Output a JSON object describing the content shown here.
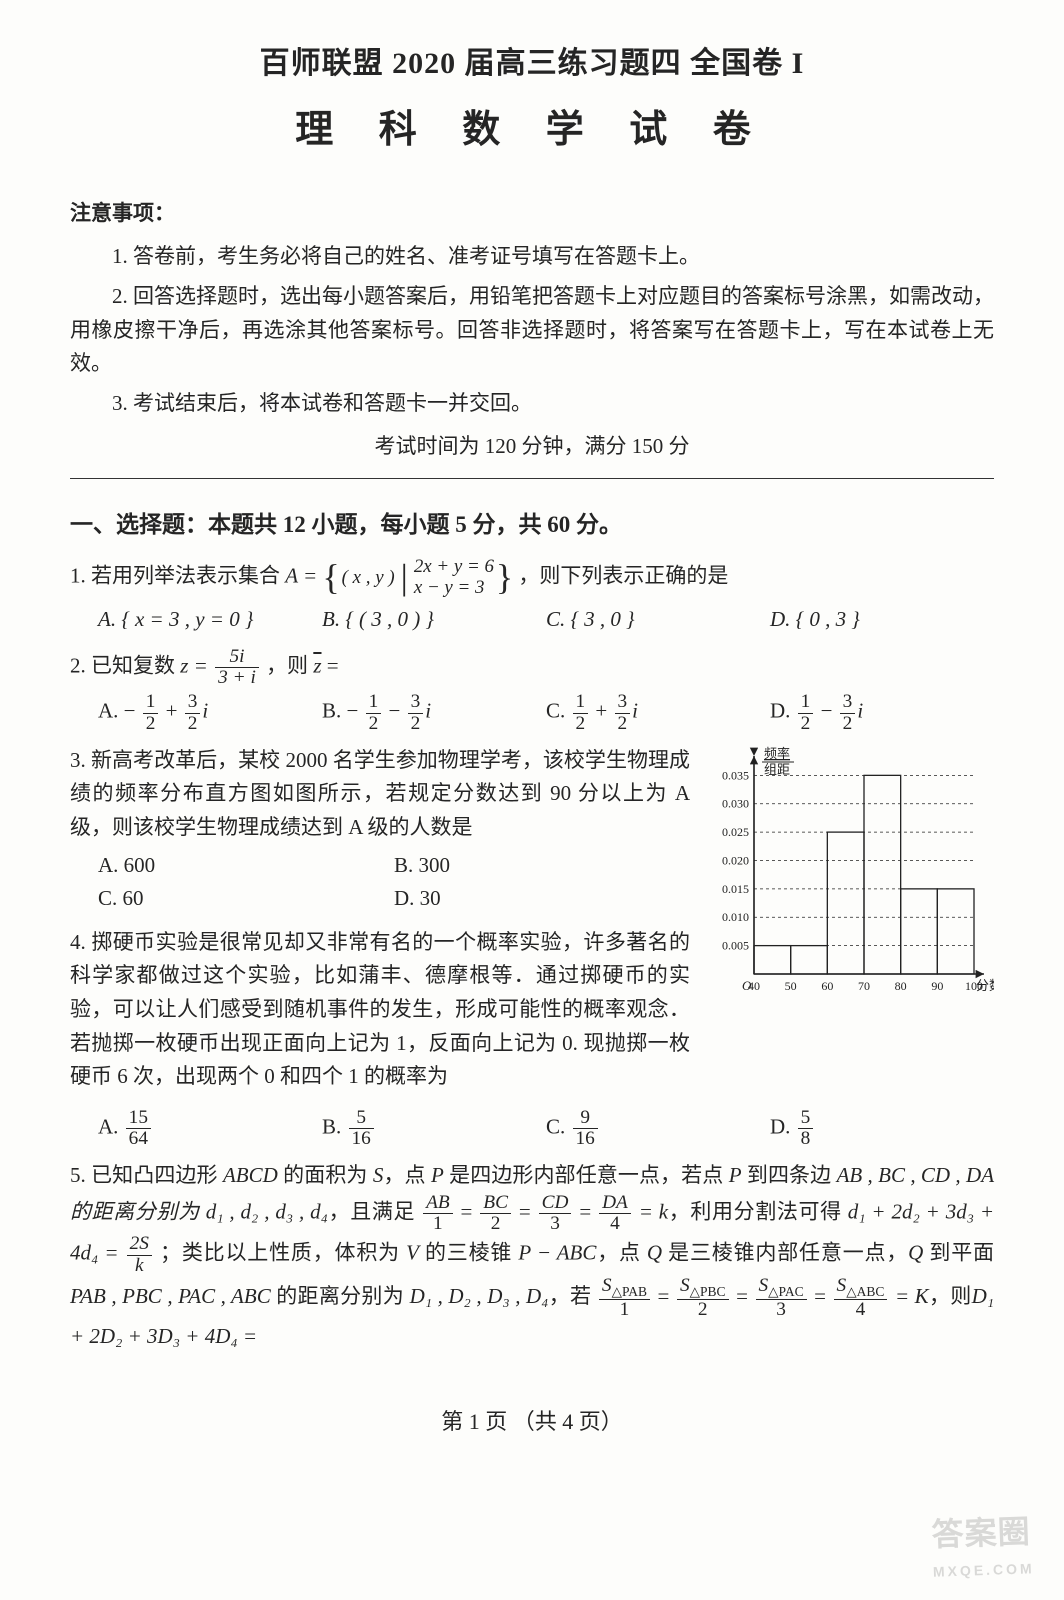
{
  "header": {
    "main_title": "百师联盟 2020 届高三练习题四  全国卷 I",
    "sub_title": "理 科 数 学 试 卷"
  },
  "notice": {
    "header": "注意事项：",
    "items": [
      "1. 答卷前，考生务必将自己的姓名、准考证号填写在答题卡上。",
      "2. 回答选择题时，选出每小题答案后，用铅笔把答题卡上对应题目的答案标号涂黑，如需改动，用橡皮擦干净后，再选涂其他答案标号。回答非选择题时，将答案写在答题卡上，写在本试卷上无效。",
      "3. 考试结束后，将本试卷和答题卡一并交回。"
    ],
    "exam_time": "考试时间为 120 分钟，满分 150 分"
  },
  "section1": {
    "header": "一、选择题：本题共 12 小题，每小题 5 分，共 60 分。"
  },
  "q1": {
    "stem_a": "1. 若用列举法表示集合 ",
    "set_lhs": "A =",
    "set_var": "( x , y )",
    "eq1": "2x + y = 6",
    "eq2": "x − y = 3",
    "stem_b": "，则下列表示正确的是",
    "optA": "A. { x = 3 , y = 0 }",
    "optB": "B. { ( 3 , 0 ) }",
    "optC": "C. { 3 , 0 }",
    "optD": "D. { 0 , 3 }"
  },
  "q2": {
    "stem_a": "2. 已知复数 ",
    "z_eq": "z =",
    "frac_num": "5i",
    "frac_den": "3 + i",
    "stem_b": "，则 ",
    "zbar": "z̄",
    "stem_c": " =",
    "optA_pre": "A.  − ",
    "optB_pre": "B.  − ",
    "optC_pre": "C.  ",
    "optD_pre": "D.  ",
    "half_num": "1",
    "half_den": "2",
    "three_half_num": "3",
    "three_half_den": "2",
    "plus_i": "i"
  },
  "q3": {
    "stem": "3. 新高考改革后，某校 2000 名学生参加物理学考，该校学生物理成绩的频率分布直方图如图所示，若规定分数达到 90 分以上为 A 级，则该校学生物理成绩达到 A 级的人数是",
    "optA": "A. 600",
    "optB": "B. 300",
    "optC": "C. 60",
    "optD": "D. 30",
    "chart": {
      "type": "histogram",
      "y_label_top": "频率",
      "y_label_bot": "组距",
      "x_label": "分数",
      "x_ticks": [
        "40",
        "50",
        "60",
        "70",
        "80",
        "90",
        "100"
      ],
      "y_ticks": [
        "0.005",
        "0.010",
        "0.015",
        "0.020",
        "0.025",
        "0.030",
        "0.035"
      ],
      "bars": [
        {
          "x0": 40,
          "x1": 50,
          "h": 0.005
        },
        {
          "x0": 50,
          "x1": 60,
          "h": 0.005
        },
        {
          "x0": 60,
          "x1": 70,
          "h": 0.025
        },
        {
          "x0": 70,
          "x1": 80,
          "h": 0.035
        },
        {
          "x0": 80,
          "x1": 90,
          "h": 0.015
        },
        {
          "x0": 90,
          "x1": 100,
          "h": 0.015
        }
      ],
      "xlim": [
        40,
        100
      ],
      "ylim": [
        0,
        0.037
      ],
      "grid_dash": "3,3",
      "bar_fill": "none",
      "bar_stroke": "#222222",
      "axis_color": "#222222",
      "label_fontsize": 13,
      "tick_fontsize": 12,
      "background": "#fdfdfb"
    }
  },
  "q4": {
    "stem": "4. 掷硬币实验是很常见却又非常有名的一个概率实验，许多著名的科学家都做过这个实验，比如蒲丰、德摩根等．通过掷硬币的实验，可以让人们感受到随机事件的发生，形成可能性的概率观念．若抛掷一枚硬币出现正面向上记为 1，反面向上记为 0. 现抛掷一枚硬币 6 次，出现两个 0 和四个 1 的概率为",
    "optA_pre": "A. ",
    "A_num": "15",
    "A_den": "64",
    "optB_pre": "B. ",
    "B_num": "5",
    "B_den": "16",
    "optC_pre": "C. ",
    "C_num": "9",
    "C_den": "16",
    "optD_pre": "D. ",
    "D_num": "5",
    "D_den": "8"
  },
  "q5": {
    "stem_a": "5. 已知凸四边形 ",
    "ABCD": "ABCD",
    "stem_b": " 的面积为 ",
    "S": "S",
    "stem_c": "，点 ",
    "P": "P",
    "stem_d": " 是四边形内部任意一点，若点 ",
    "stem_e": " 到四条边 ",
    "sides": "AB , BC , CD ,",
    "stem_f": "DA 的距离分别为 ",
    "d_list": "d₁ , d₂ , d₃ , d₄",
    "stem_g": "，且满足 ",
    "ratio_AB_num": "AB",
    "r1": "1",
    "ratio_BC_num": "BC",
    "r2": "2",
    "ratio_CD_num": "CD",
    "r3": "3",
    "ratio_DA_num": "DA",
    "r4": "4",
    "eq_k": " = k",
    "stem_h": "，利用分割法可得 ",
    "d_sum": "d₁ + 2d₂ + 3d₃ +",
    "d_sum2": "4d₄ = ",
    "twoS_num": "2S",
    "twoS_den": "k",
    "stem_i": "；类比以上性质，体积为 ",
    "V": "V",
    "stem_j": " 的三棱锥 ",
    "PABC": "P − ABC",
    "stem_k": "，点 ",
    "Q": "Q",
    "stem_l": " 是三棱锥内部任意一点，",
    "stem_m": " 到平面",
    "faces": "PAB , PBC , PAC , ABC",
    "stem_n": " 的距离分别为 ",
    "D_list": "D₁ , D₂ , D₃ , D₄",
    "stem_o": "，若 ",
    "S_PAB": "S",
    "tri_PAB": "△PAB",
    "R1": "1",
    "S_PBC": "S",
    "tri_PBC": "△PBC",
    "R2": "2",
    "S_PAC": "S",
    "tri_PAC": "△PAC",
    "R3": "3",
    "S_ABC": "S",
    "tri_ABC": "△ABC",
    "R4": "4",
    "eq_K": " = K",
    "stem_p": "，则",
    "D_sum": "D₁ + 2D₂ + 3D₃ + 4D₄ ="
  },
  "footer": "第 1 页 （共 4 页）",
  "watermark": {
    "big": "答案圈",
    "small": "MXQE.COM"
  }
}
